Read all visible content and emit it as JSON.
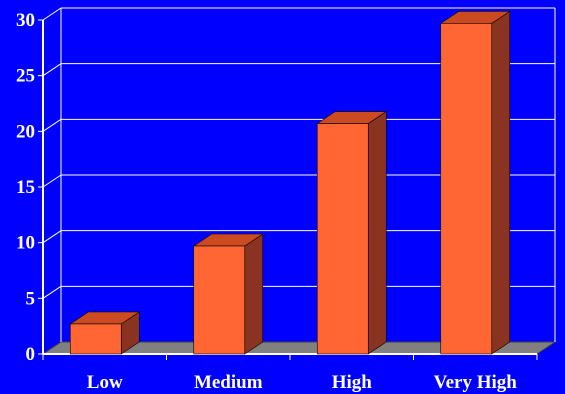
{
  "chart_data": {
    "type": "bar",
    "categories": [
      "Low",
      "Medium",
      "High",
      "Very High"
    ],
    "values": [
      2.7,
      9.7,
      20.7,
      29.7
    ],
    "ylim": [
      0,
      30
    ],
    "yticks": [
      "0",
      "5",
      "10",
      "15",
      "20",
      "25",
      "30"
    ],
    "title": "",
    "xlabel": "",
    "ylabel": "",
    "grid": true,
    "style": "3d"
  },
  "colors": {
    "background": "#0000ff",
    "bar_front": "#ff6633",
    "bar_top": "#cc4a22",
    "bar_side": "#8a3320",
    "floor": "#808080",
    "grid": "#ffffff",
    "text": "#ffffff"
  }
}
